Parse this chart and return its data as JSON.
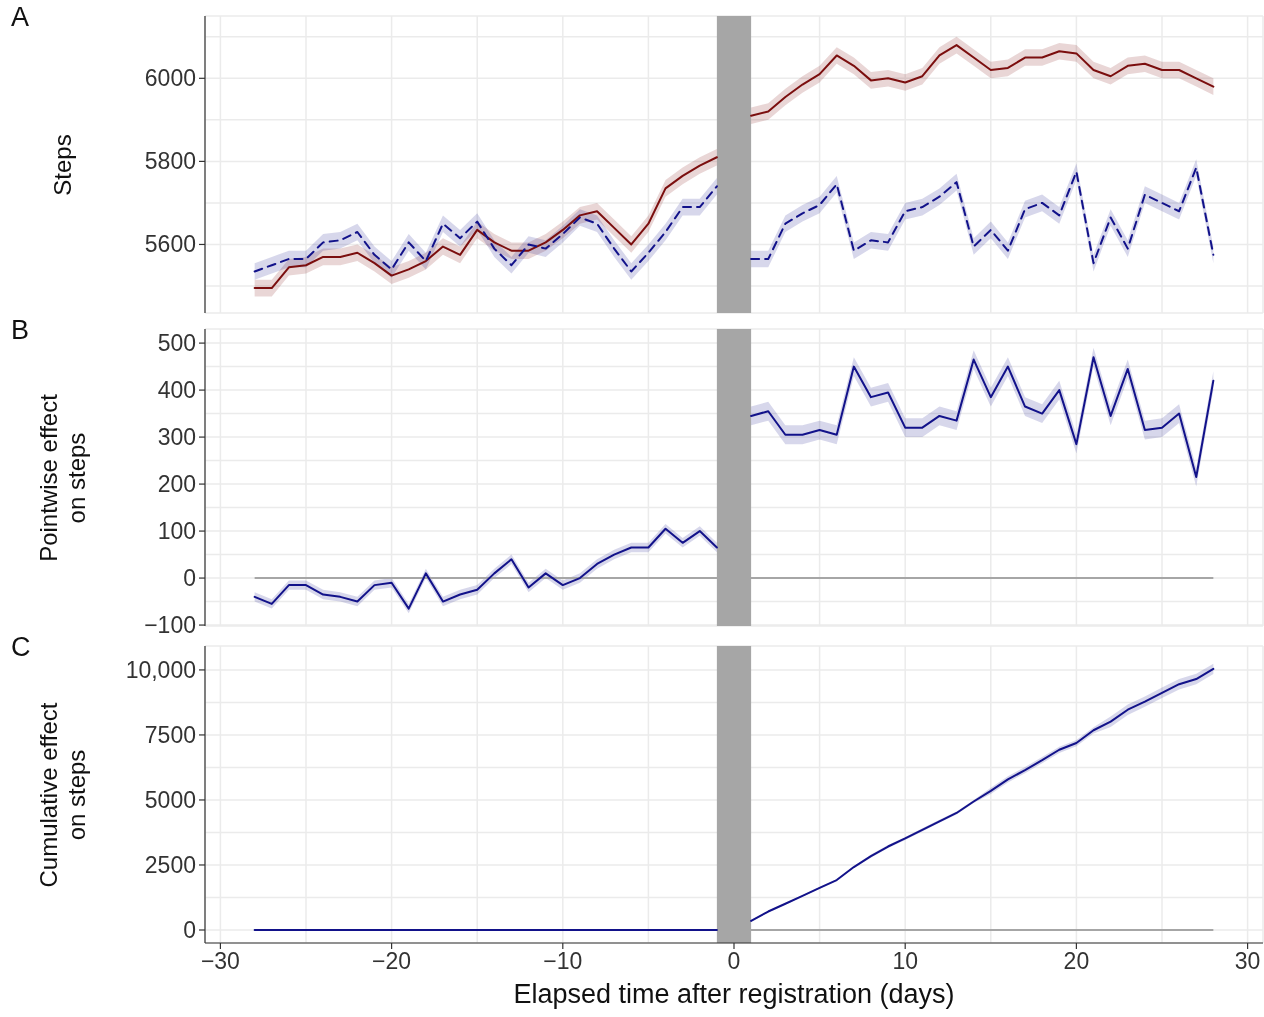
{
  "chart_data": [
    {
      "type": "line",
      "title": "A",
      "ylabel": "Steps",
      "x": [
        -28,
        -27,
        -26,
        -25,
        -24,
        -23,
        -22,
        -21,
        -20,
        -19,
        -18,
        -17,
        -16,
        -15,
        -14,
        -13,
        -12,
        -11,
        -10,
        -9,
        -8,
        -7,
        -6,
        -5,
        -4,
        -3,
        -2,
        -1,
        0,
        1,
        2,
        3,
        4,
        5,
        6,
        7,
        8,
        9,
        10,
        11,
        12,
        13,
        14,
        15,
        16,
        17,
        18,
        19,
        20,
        21,
        22,
        23,
        24,
        25,
        26,
        27,
        28
      ],
      "series": [
        {
          "color": "#7b0e0e",
          "line_style": "solid",
          "values": [
            5495,
            5495,
            5545,
            5550,
            5570,
            5570,
            5580,
            5555,
            5525,
            5540,
            5560,
            5595,
            5575,
            5635,
            5605,
            5585,
            5585,
            5605,
            5635,
            5670,
            5680,
            5640,
            5600,
            5650,
            5735,
            5765,
            5790,
            5810,
            null,
            5910,
            5920,
            5955,
            5985,
            6010,
            6055,
            6030,
            5995,
            6000,
            5990,
            6005,
            6055,
            6080,
            6050,
            6020,
            6025,
            6050,
            6050,
            6065,
            6060,
            6020,
            6005,
            6030,
            6035,
            6020,
            6020,
            6000,
            5980
          ],
          "lower": [
            5475,
            5475,
            5525,
            5530,
            5550,
            5550,
            5560,
            5535,
            5505,
            5520,
            5540,
            5575,
            5555,
            5615,
            5585,
            5565,
            5565,
            5585,
            5615,
            5650,
            5660,
            5620,
            5580,
            5630,
            5715,
            5745,
            5770,
            5790,
            null,
            5890,
            5900,
            5935,
            5965,
            5990,
            6035,
            6010,
            5975,
            5980,
            5970,
            5985,
            6035,
            6060,
            6030,
            6000,
            6005,
            6030,
            6030,
            6045,
            6040,
            6000,
            5985,
            6010,
            6015,
            6000,
            6000,
            5980,
            5960
          ],
          "upper": [
            5515,
            5515,
            5565,
            5570,
            5590,
            5590,
            5600,
            5575,
            5545,
            5560,
            5580,
            5615,
            5595,
            5655,
            5625,
            5605,
            5605,
            5625,
            5655,
            5690,
            5700,
            5660,
            5620,
            5670,
            5755,
            5785,
            5810,
            5830,
            null,
            5930,
            5940,
            5975,
            6005,
            6030,
            6075,
            6050,
            6015,
            6020,
            6010,
            6025,
            6075,
            6100,
            6070,
            6040,
            6045,
            6070,
            6070,
            6085,
            6080,
            6040,
            6025,
            6050,
            6055,
            6040,
            6040,
            6020,
            6000
          ]
        },
        {
          "color": "#12128a",
          "line_style": "dashed",
          "values": [
            5535,
            5550,
            5565,
            5565,
            5605,
            5610,
            5630,
            5575,
            5540,
            5605,
            5560,
            5650,
            5615,
            5655,
            5590,
            5550,
            5600,
            5590,
            5625,
            5665,
            5650,
            5590,
            5535,
            5580,
            5630,
            5690,
            5690,
            5740,
            null,
            5565,
            5565,
            5650,
            5675,
            5695,
            5745,
            5585,
            5610,
            5605,
            5680,
            5690,
            5715,
            5750,
            5595,
            5635,
            5585,
            5685,
            5700,
            5670,
            5775,
            5555,
            5665,
            5590,
            5720,
            5700,
            5680,
            5785,
            5575
          ],
          "lower": [
            5515,
            5530,
            5545,
            5545,
            5585,
            5590,
            5610,
            5555,
            5520,
            5585,
            5540,
            5630,
            5595,
            5635,
            5570,
            5530,
            5580,
            5570,
            5605,
            5645,
            5630,
            5570,
            5515,
            5560,
            5610,
            5670,
            5670,
            5720,
            null,
            5545,
            5545,
            5630,
            5655,
            5675,
            5725,
            5565,
            5590,
            5585,
            5660,
            5670,
            5695,
            5730,
            5575,
            5615,
            5565,
            5665,
            5680,
            5650,
            5755,
            5535,
            5645,
            5570,
            5700,
            5680,
            5660,
            5765,
            5555
          ],
          "upper": [
            5555,
            5570,
            5585,
            5585,
            5625,
            5630,
            5650,
            5595,
            5560,
            5625,
            5580,
            5670,
            5635,
            5675,
            5610,
            5570,
            5620,
            5610,
            5645,
            5685,
            5670,
            5610,
            5555,
            5600,
            5650,
            5710,
            5710,
            5760,
            null,
            5585,
            5585,
            5670,
            5695,
            5715,
            5765,
            5605,
            5630,
            5625,
            5700,
            5710,
            5735,
            5770,
            5615,
            5655,
            5605,
            5705,
            5720,
            5690,
            5795,
            5575,
            5685,
            5610,
            5740,
            5720,
            5700,
            5805,
            5595
          ]
        }
      ],
      "xlim": [
        -30.9,
        30.9
      ],
      "xticks": [
        -30,
        -25,
        -20,
        -15,
        -10,
        -5,
        0,
        5,
        10,
        15,
        20,
        25,
        30
      ],
      "ylim": [
        5435,
        6150
      ],
      "yticks": [
        {
          "value": 5500,
          "label": null
        },
        5600,
        {
          "value": 5700,
          "label": null
        },
        5800,
        {
          "value": 5900,
          "label": null
        },
        6000,
        {
          "value": 6100,
          "label": null
        }
      ],
      "grid": true,
      "tick_labels": "y",
      "bands": [
        {
          "axis": "x",
          "from": -1,
          "to": 1,
          "color": "#a6a6a6"
        }
      ]
    },
    {
      "type": "line",
      "title": "B",
      "ylabel": "Pointwise effect\non steps",
      "x": [
        -28,
        -27,
        -26,
        -25,
        -24,
        -23,
        -22,
        -21,
        -20,
        -19,
        -18,
        -17,
        -16,
        -15,
        -14,
        -13,
        -12,
        -11,
        -10,
        -9,
        -8,
        -7,
        -6,
        -5,
        -4,
        -3,
        -2,
        -1,
        0,
        1,
        2,
        3,
        4,
        5,
        6,
        7,
        8,
        9,
        10,
        11,
        12,
        13,
        14,
        15,
        16,
        17,
        18,
        19,
        20,
        21,
        22,
        23,
        24,
        25,
        26,
        27,
        28
      ],
      "series": [
        {
          "color": "#12128a",
          "values": [
            -40,
            -55,
            -15,
            -15,
            -35,
            -40,
            -50,
            -15,
            -10,
            -65,
            10,
            -50,
            -35,
            -25,
            10,
            40,
            -20,
            10,
            -15,
            0,
            30,
            50,
            65,
            65,
            105,
            75,
            100,
            65,
            null,
            345,
            355,
            305,
            305,
            315,
            305,
            450,
            385,
            395,
            320,
            320,
            345,
            335,
            465,
            385,
            450,
            365,
            350,
            400,
            285,
            470,
            345,
            445,
            315,
            320,
            350,
            215,
            420
          ],
          "lower": [
            -50,
            -65,
            -25,
            -25,
            -45,
            -50,
            -60,
            -25,
            -20,
            -75,
            0,
            -60,
            -45,
            -35,
            0,
            30,
            -30,
            0,
            -25,
            -10,
            20,
            40,
            55,
            55,
            95,
            65,
            90,
            55,
            null,
            325,
            335,
            285,
            285,
            295,
            285,
            430,
            365,
            375,
            300,
            300,
            325,
            315,
            445,
            365,
            430,
            345,
            330,
            380,
            265,
            450,
            325,
            425,
            295,
            300,
            330,
            195,
            400
          ],
          "upper": [
            -30,
            -45,
            -5,
            -5,
            -25,
            -30,
            -40,
            -5,
            0,
            -55,
            20,
            -40,
            -25,
            -15,
            20,
            50,
            -10,
            20,
            -5,
            10,
            40,
            60,
            75,
            75,
            115,
            85,
            110,
            75,
            null,
            365,
            375,
            325,
            325,
            335,
            325,
            470,
            405,
            415,
            340,
            340,
            365,
            355,
            485,
            405,
            470,
            385,
            370,
            420,
            305,
            490,
            365,
            465,
            335,
            340,
            370,
            235,
            440
          ]
        }
      ],
      "xlim": [
        -30.9,
        30.9
      ],
      "xticks": [
        -30,
        -25,
        -20,
        -15,
        -10,
        -5,
        0,
        5,
        10,
        15,
        20,
        25,
        30
      ],
      "ylim": [
        -102,
        530
      ],
      "yticks": [
        {
          "value": -100,
          "label": "−100"
        },
        {
          "value": -50,
          "label": null
        },
        0,
        {
          "value": 50,
          "label": null
        },
        100,
        {
          "value": 150,
          "label": null
        },
        200,
        {
          "value": 250,
          "label": null
        },
        300,
        {
          "value": 350,
          "label": null
        },
        400,
        {
          "value": 450,
          "label": null
        },
        500
      ],
      "grid": true,
      "tick_labels": "y",
      "ref_lines": [
        {
          "axis": "y",
          "value": 0,
          "color": "#a6a6a6"
        }
      ],
      "bands": [
        {
          "axis": "x",
          "from": -1,
          "to": 1,
          "color": "#a6a6a6"
        }
      ]
    },
    {
      "type": "line",
      "title": "C",
      "ylabel": "Cumulative effect\non steps",
      "xlabel": "Elapsed time after registration (days)",
      "x": [
        -28,
        -27,
        -26,
        -25,
        -24,
        -23,
        -22,
        -21,
        -20,
        -19,
        -18,
        -17,
        -16,
        -15,
        -14,
        -13,
        -12,
        -11,
        -10,
        -9,
        -8,
        -7,
        -6,
        -5,
        -4,
        -3,
        -2,
        -1,
        0,
        1,
        2,
        3,
        4,
        5,
        6,
        7,
        8,
        9,
        10,
        11,
        12,
        13,
        14,
        15,
        16,
        17,
        18,
        19,
        20,
        21,
        22,
        23,
        24,
        25,
        26,
        27,
        28
      ],
      "series": [
        {
          "color": "#12128a",
          "values": [
            0,
            0,
            0,
            0,
            0,
            0,
            0,
            0,
            0,
            0,
            0,
            0,
            0,
            0,
            0,
            0,
            0,
            0,
            0,
            0,
            0,
            0,
            0,
            0,
            0,
            0,
            0,
            0,
            null,
            350,
            710,
            1010,
            1310,
            1620,
            1920,
            2420,
            2840,
            3210,
            3520,
            3850,
            4180,
            4500,
            4940,
            5350,
            5790,
            6150,
            6530,
            6930,
            7190,
            7680,
            8010,
            8470,
            8780,
            9120,
            9450,
            9650,
            10040
          ],
          "lower": [
            null,
            null,
            null,
            null,
            null,
            null,
            null,
            null,
            null,
            null,
            null,
            null,
            null,
            null,
            null,
            null,
            null,
            null,
            null,
            null,
            null,
            null,
            null,
            null,
            null,
            null,
            null,
            null,
            null,
            320,
            680,
            980,
            1280,
            1590,
            1890,
            2390,
            2780,
            3150,
            3460,
            3790,
            4120,
            4440,
            4880,
            5230,
            5670,
            6030,
            6410,
            6810,
            7070,
            7560,
            7810,
            8270,
            8580,
            8920,
            9250,
            9450,
            9840
          ],
          "upper": [
            null,
            null,
            null,
            null,
            null,
            null,
            null,
            null,
            null,
            null,
            null,
            null,
            null,
            null,
            null,
            null,
            null,
            null,
            null,
            null,
            null,
            null,
            null,
            null,
            null,
            null,
            null,
            null,
            null,
            380,
            740,
            1040,
            1340,
            1650,
            1950,
            2450,
            2900,
            3270,
            3580,
            3910,
            4240,
            4560,
            5000,
            5470,
            5910,
            6270,
            6650,
            7050,
            7310,
            7800,
            8210,
            8670,
            8980,
            9320,
            9650,
            9850,
            10240
          ]
        }
      ],
      "xlim": [
        -30.9,
        30.9
      ],
      "xticks": [
        {
          "value": -30,
          "label": "−30"
        },
        {
          "value": -25,
          "label": null
        },
        {
          "value": -20,
          "label": "−20"
        },
        {
          "value": -15,
          "label": null
        },
        {
          "value": -10,
          "label": "−10"
        },
        {
          "value": -5,
          "label": null
        },
        0,
        {
          "value": 5,
          "label": null
        },
        10,
        {
          "value": 15,
          "label": null
        },
        20,
        {
          "value": 25,
          "label": null
        },
        30
      ],
      "ylim": [
        -500,
        10920
      ],
      "yticks": [
        0,
        {
          "value": 1250,
          "label": null
        },
        2500,
        {
          "value": 3750,
          "label": null
        },
        5000,
        {
          "value": 6250,
          "label": null
        },
        7500,
        {
          "value": 8750,
          "label": null
        },
        {
          "value": 10000,
          "label": "10,000"
        }
      ],
      "grid": true,
      "ref_lines": [
        {
          "axis": "y",
          "value": 0,
          "color": "#a6a6a6"
        }
      ],
      "bands": [
        {
          "axis": "x",
          "from": -1,
          "to": 1,
          "color": "#a6a6a6"
        }
      ]
    }
  ]
}
